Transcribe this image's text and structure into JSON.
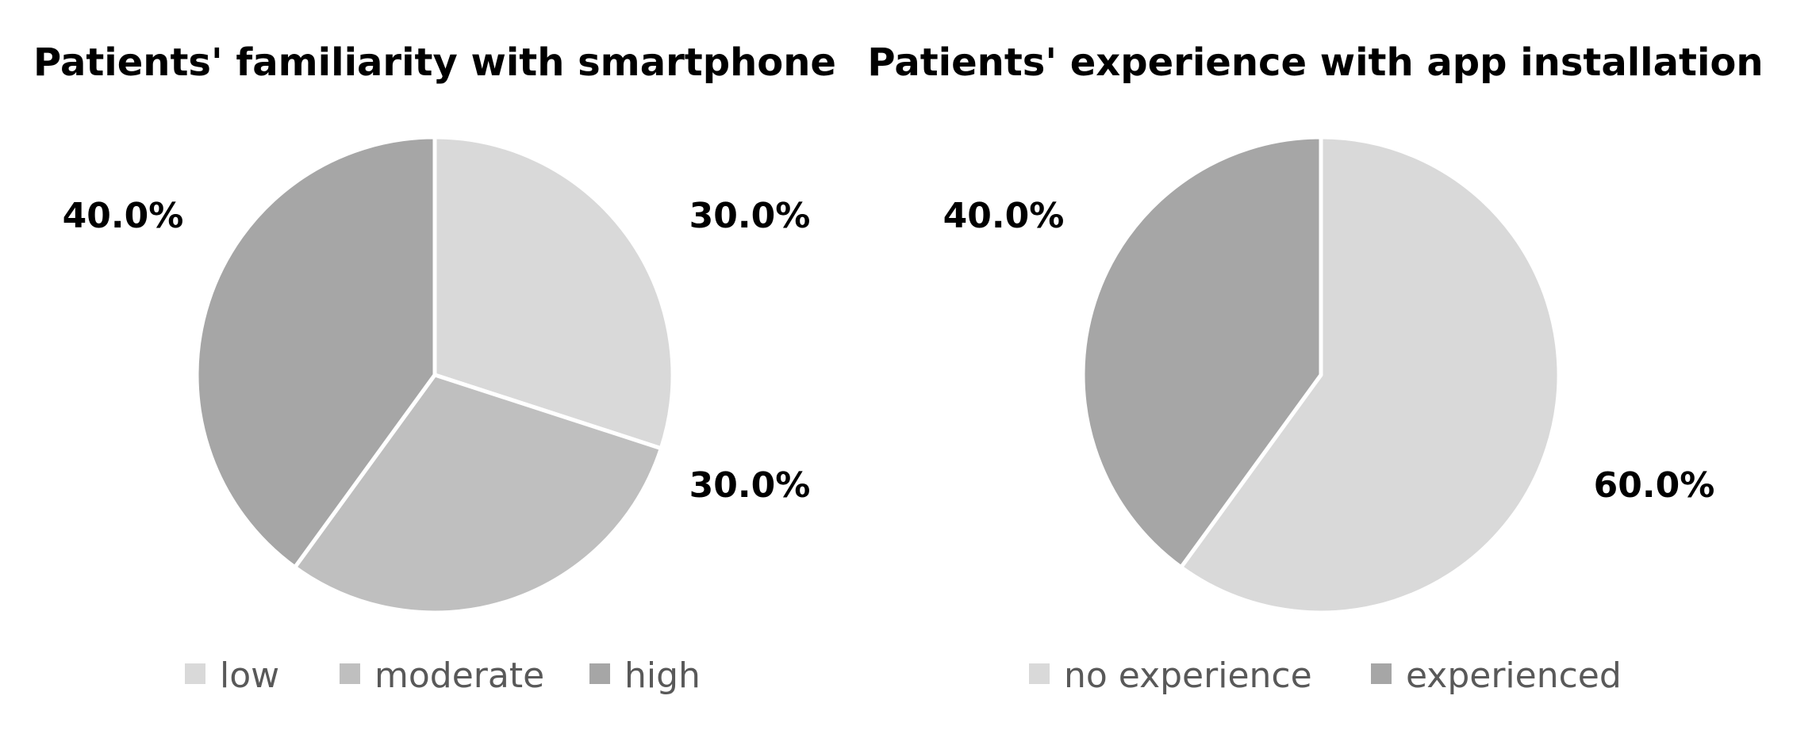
{
  "chart_data": [
    {
      "type": "pie",
      "title": "Patients' familiarity with smartphone",
      "categories": [
        "low",
        "moderate",
        "high"
      ],
      "values": [
        30.0,
        30.0,
        40.0
      ],
      "labels": [
        "30.0%",
        "30.0%",
        "40.0%"
      ],
      "colors": [
        "#d9d9d9",
        "#bfbfbf",
        "#a6a6a6"
      ],
      "legend": "bottom"
    },
    {
      "type": "pie",
      "title": "Patients' experience with app installation",
      "categories": [
        "no experience",
        "experienced"
      ],
      "values": [
        60.0,
        40.0
      ],
      "labels": [
        "60.0%",
        "40.0%"
      ],
      "colors": [
        "#d9d9d9",
        "#a6a6a6"
      ],
      "legend": "bottom"
    }
  ]
}
